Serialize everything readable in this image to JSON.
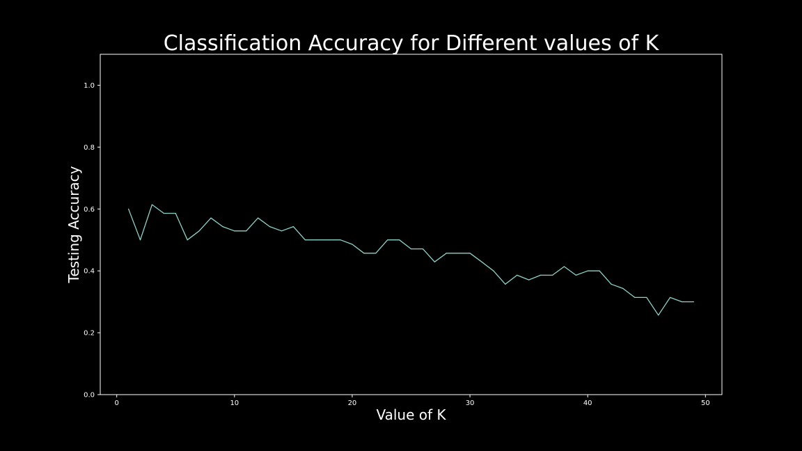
{
  "chart_data": {
    "type": "line",
    "title": "Classification Accuracy for Different values of K",
    "xlabel": "Value of K",
    "ylabel": "Testing Accuracy",
    "xlim": [
      -1.4,
      51.4
    ],
    "ylim": [
      0.0,
      1.1
    ],
    "xticks": [
      0,
      10,
      20,
      30,
      40,
      50
    ],
    "xtick_labels": [
      "0",
      "10",
      "20",
      "30",
      "40",
      "50"
    ],
    "yticks": [
      0.0,
      0.2,
      0.4,
      0.6,
      0.8,
      1.0
    ],
    "ytick_labels": [
      "0.0",
      "0.2",
      "0.4",
      "0.6",
      "0.8",
      "1.0"
    ],
    "grid": false,
    "series": [
      {
        "x": [
          1,
          2,
          3,
          4,
          5,
          6,
          7,
          8,
          9,
          10,
          11,
          12,
          13,
          14,
          15,
          16,
          17,
          18,
          19,
          20,
          21,
          22,
          23,
          24,
          25,
          26,
          27,
          28,
          29,
          30,
          31,
          32,
          33,
          34,
          35,
          36,
          37,
          38,
          39,
          40,
          41,
          42,
          43,
          44,
          45,
          46,
          47,
          48,
          49
        ],
        "values": [
          0.6,
          0.5,
          0.614,
          0.586,
          0.586,
          0.5,
          0.529,
          0.571,
          0.543,
          0.529,
          0.529,
          0.571,
          0.543,
          0.529,
          0.543,
          0.5,
          0.5,
          0.5,
          0.5,
          0.486,
          0.457,
          0.457,
          0.5,
          0.5,
          0.471,
          0.471,
          0.429,
          0.457,
          0.457,
          0.457,
          0.429,
          0.4,
          0.357,
          0.386,
          0.371,
          0.386,
          0.386,
          0.414,
          0.386,
          0.4,
          0.4,
          0.357,
          0.343,
          0.314,
          0.314,
          0.257,
          0.314,
          0.3,
          0.3
        ]
      }
    ]
  },
  "style": {
    "background": "#000000",
    "line_color": "#8dd3c7",
    "axis_color": "#ffffff",
    "text_color": "#ffffff"
  }
}
